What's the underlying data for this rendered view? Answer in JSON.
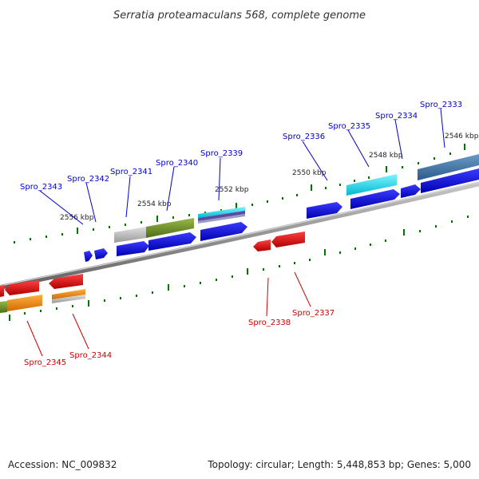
{
  "title": "Serratia proteamaculans 568, complete genome",
  "footer": {
    "accession": "Accession: NC_009832",
    "summary": "Topology: circular; Length: 5,448,853 bp; Genes: 5,000"
  },
  "colors": {
    "forward_label": "#0000cc",
    "reverse_label": "#cc0000",
    "forward_gene": "#0a0ad8",
    "reverse_gene": "#e01010",
    "backbone": "#808080",
    "tick_marks": "#007700"
  },
  "scale_labels": [
    {
      "text": "2556 kbp"
    },
    {
      "text": "2554 kbp"
    },
    {
      "text": "2552 kbp"
    },
    {
      "text": "2550 kbp"
    },
    {
      "text": "2548 kbp"
    },
    {
      "text": "2546 kbp"
    }
  ],
  "forward_genes": [
    {
      "name": "Spro_2343"
    },
    {
      "name": "Spro_2342"
    },
    {
      "name": "Spro_2341"
    },
    {
      "name": "Spro_2340"
    },
    {
      "name": "Spro_2339"
    },
    {
      "name": "Spro_2336"
    },
    {
      "name": "Spro_2335"
    },
    {
      "name": "Spro_2334"
    },
    {
      "name": "Spro_2333"
    }
  ],
  "reverse_genes": [
    {
      "name": "Spro_2345"
    },
    {
      "name": "Spro_2344"
    },
    {
      "name": "Spro_2338"
    },
    {
      "name": "Spro_2337"
    }
  ]
}
